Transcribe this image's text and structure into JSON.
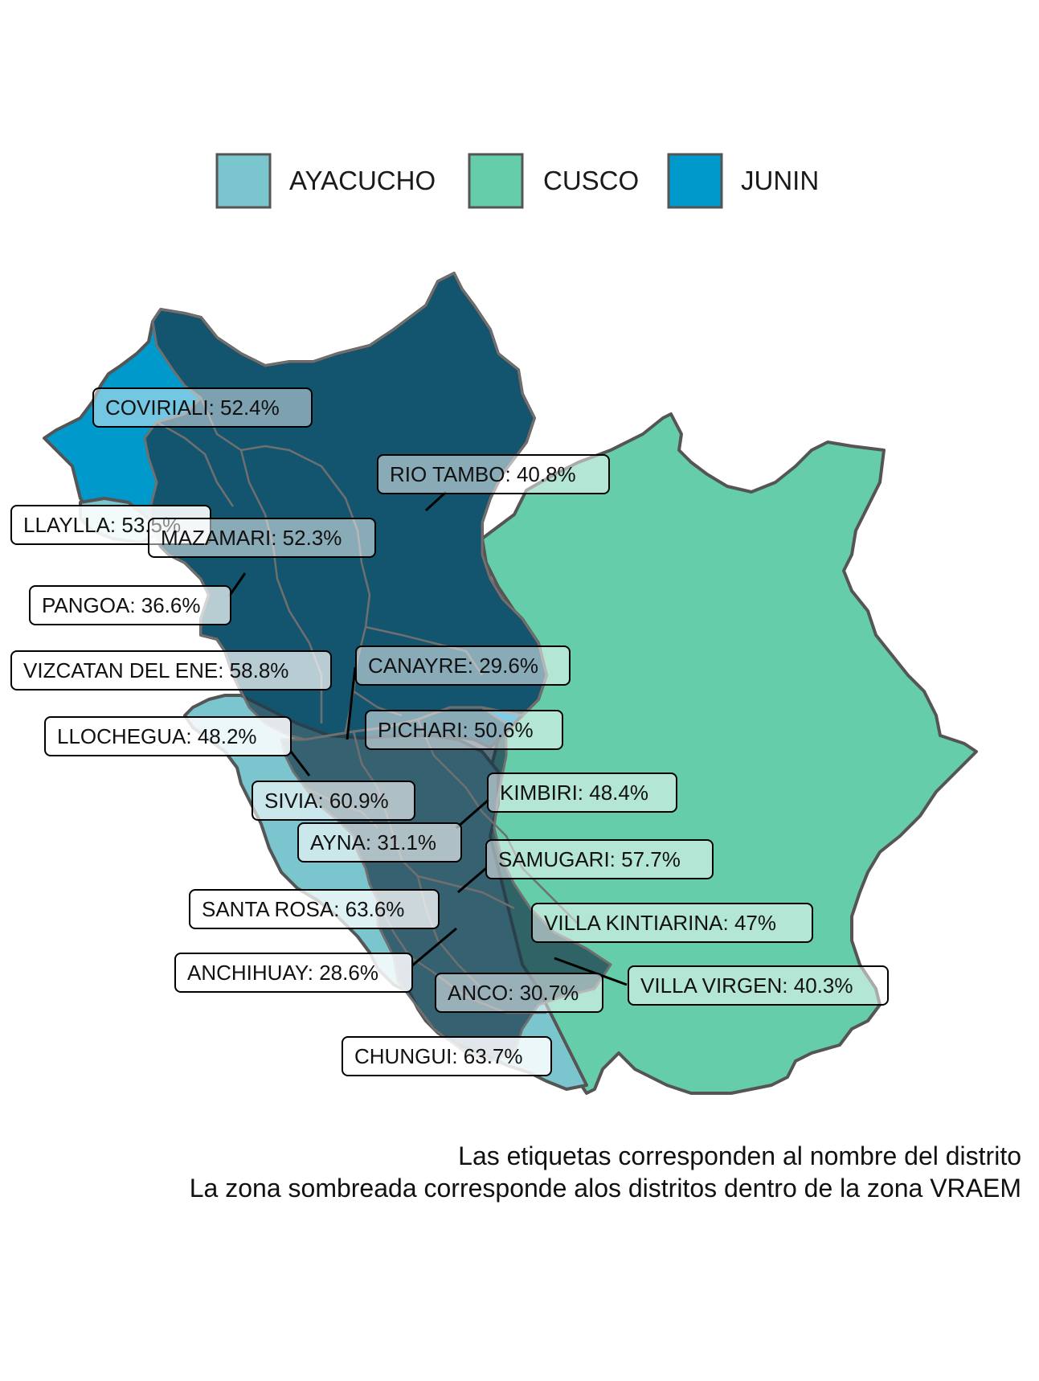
{
  "legend": [
    {
      "name": "AYACUCHO",
      "color": "#7bc5cf"
    },
    {
      "name": "CUSCO",
      "color": "#66cdaa"
    },
    {
      "name": "JUNIN",
      "color": "#0099cc"
    }
  ],
  "region_colors": {
    "ayacucho": "#7bc5cf",
    "cusco": "#66cdaa",
    "junin": "#0099cc",
    "vraem_shading": "#1b3a4b",
    "border": "#555555"
  },
  "labels": [
    {
      "id": "coviriali",
      "text": "COVIRIALI: 52.4%"
    },
    {
      "id": "rio-tambo",
      "text": "RIO TAMBO: 40.8%"
    },
    {
      "id": "llaylla",
      "text": "LLAYLLA: 53.5%"
    },
    {
      "id": "mazamari",
      "text": "MAZAMARI: 52.3%"
    },
    {
      "id": "pangoa",
      "text": "PANGOA: 36.6%"
    },
    {
      "id": "vizcatan",
      "text": "VIZCATAN DEL ENE: 58.8%"
    },
    {
      "id": "canayre",
      "text": "CANAYRE: 29.6%"
    },
    {
      "id": "llochegua",
      "text": "LLOCHEGUA: 48.2%"
    },
    {
      "id": "pichari",
      "text": "PICHARI: 50.6%"
    },
    {
      "id": "sivia",
      "text": "SIVIA: 60.9%"
    },
    {
      "id": "kimbiri",
      "text": "KIMBIRI: 48.4%"
    },
    {
      "id": "ayna",
      "text": "AYNA: 31.1%"
    },
    {
      "id": "samugari",
      "text": "SAMUGARI: 57.7%"
    },
    {
      "id": "santa-rosa",
      "text": "SANTA ROSA: 63.6%"
    },
    {
      "id": "villa-kintiarina",
      "text": "VILLA KINTIARINA: 47%"
    },
    {
      "id": "anchihuay",
      "text": "ANCHIHUAY: 28.6%"
    },
    {
      "id": "villa-virgen",
      "text": "VILLA VIRGEN: 40.3%"
    },
    {
      "id": "anco",
      "text": "ANCO: 30.7%"
    },
    {
      "id": "chungui",
      "text": "CHUNGUI: 63.7%"
    }
  ],
  "caption": {
    "line1": "Las etiquetas corresponden al nombre del distrito",
    "line2": "La zona sombreada corresponde alos distritos dentro de la zona VRAEM"
  }
}
